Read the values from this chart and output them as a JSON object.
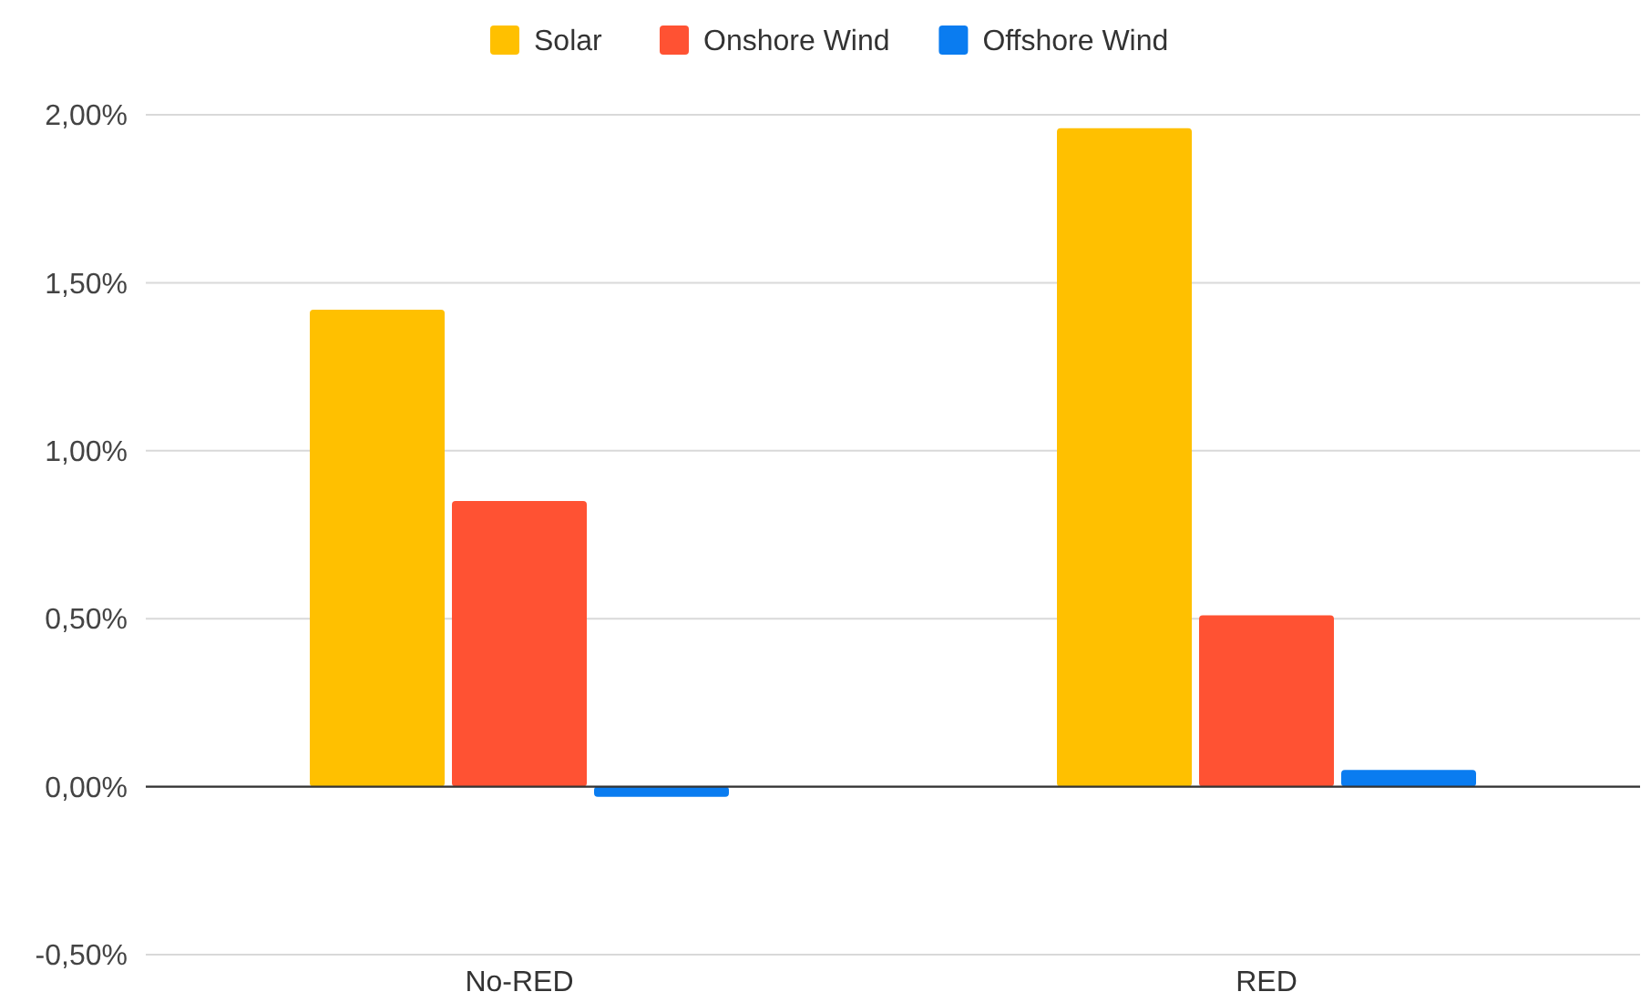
{
  "chart_data": {
    "type": "bar",
    "categories": [
      "No-RED",
      "RED"
    ],
    "series": [
      {
        "name": "Solar",
        "color": "#ffc000",
        "values": [
          1.42,
          1.96
        ]
      },
      {
        "name": "Onshore Wind",
        "color": "#ff5233",
        "values": [
          0.85,
          0.51
        ]
      },
      {
        "name": "Offshore Wind",
        "color": "#0a7cf0",
        "values": [
          -0.03,
          0.05
        ]
      }
    ],
    "ylim": [
      -0.5,
      2
    ],
    "yticks": [
      {
        "value": -0.5,
        "label": "-0,50%"
      },
      {
        "value": 0,
        "label": "0,00%"
      },
      {
        "value": 0.5,
        "label": "0,50%"
      },
      {
        "value": 1,
        "label": "1,00%"
      },
      {
        "value": 1.5,
        "label": "1,50%"
      },
      {
        "value": 2,
        "label": "2,00%"
      }
    ],
    "grid": "y",
    "legend": "top"
  }
}
